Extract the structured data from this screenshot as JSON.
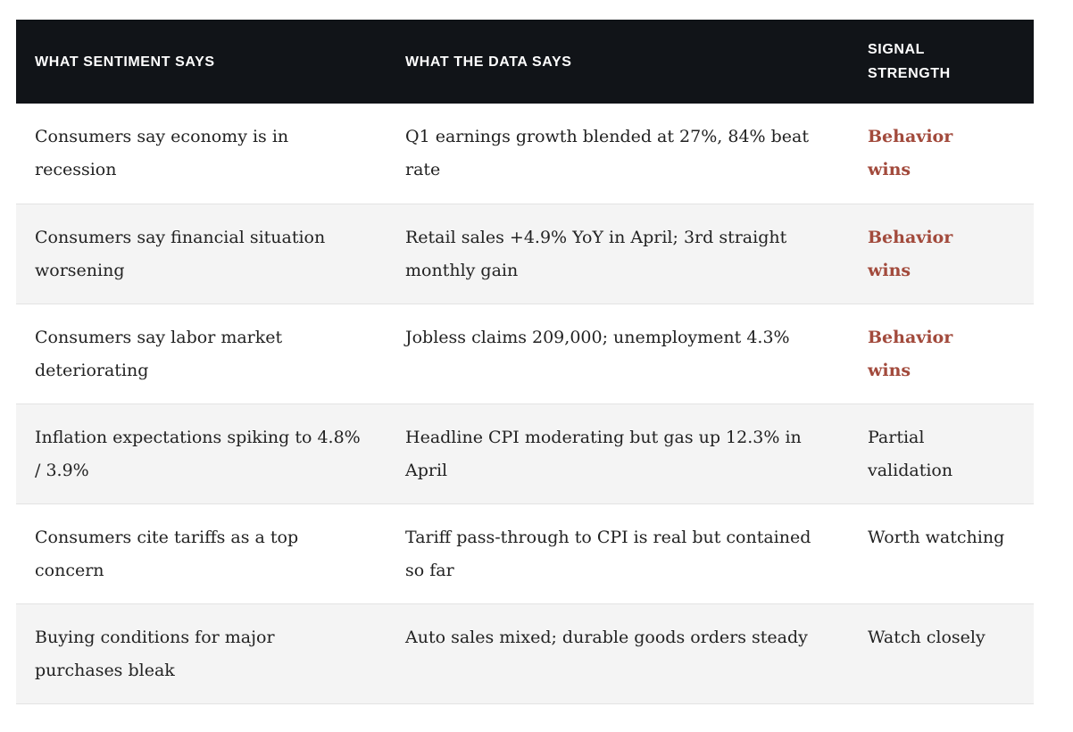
{
  "table": {
    "headers": [
      "WHAT SENTIMENT SAYS",
      "WHAT THE DATA SAYS",
      "SIGNAL STRENGTH"
    ],
    "rows": [
      {
        "sentiment": "Consumers say economy is in recession",
        "data": "Q1 earnings growth blended at 27%, 84% beat rate",
        "signal": "Behavior wins",
        "signal_emphasis": true
      },
      {
        "sentiment": "Consumers say financial situation worsening",
        "data": "Retail sales +4.9% YoY in April; 3rd straight monthly gain",
        "signal": "Behavior wins",
        "signal_emphasis": true
      },
      {
        "sentiment": "Consumers say labor market deteriorating",
        "data": "Jobless claims 209,000; unemployment 4.3%",
        "signal": "Behavior wins",
        "signal_emphasis": true
      },
      {
        "sentiment": "Inflation expectations spiking to 4.8% / 3.9%",
        "data": "Headline CPI moderating but gas up 12.3% in April",
        "signal": "Partial validation",
        "signal_emphasis": false
      },
      {
        "sentiment": "Consumers cite tariffs as a top concern",
        "data": "Tariff pass-through to CPI is real but contained so far",
        "signal": "Worth watching",
        "signal_emphasis": false
      },
      {
        "sentiment": "Buying conditions for major purchases bleak",
        "data": "Auto sales mixed; durable goods orders steady",
        "signal": "Watch closely",
        "signal_emphasis": false
      }
    ]
  },
  "colors": {
    "header_bg": "#111418",
    "header_text": "#ffffff",
    "emphasis_text": "#a24a3c",
    "body_text": "#222222",
    "stripe_bg": "#f4f4f4"
  }
}
